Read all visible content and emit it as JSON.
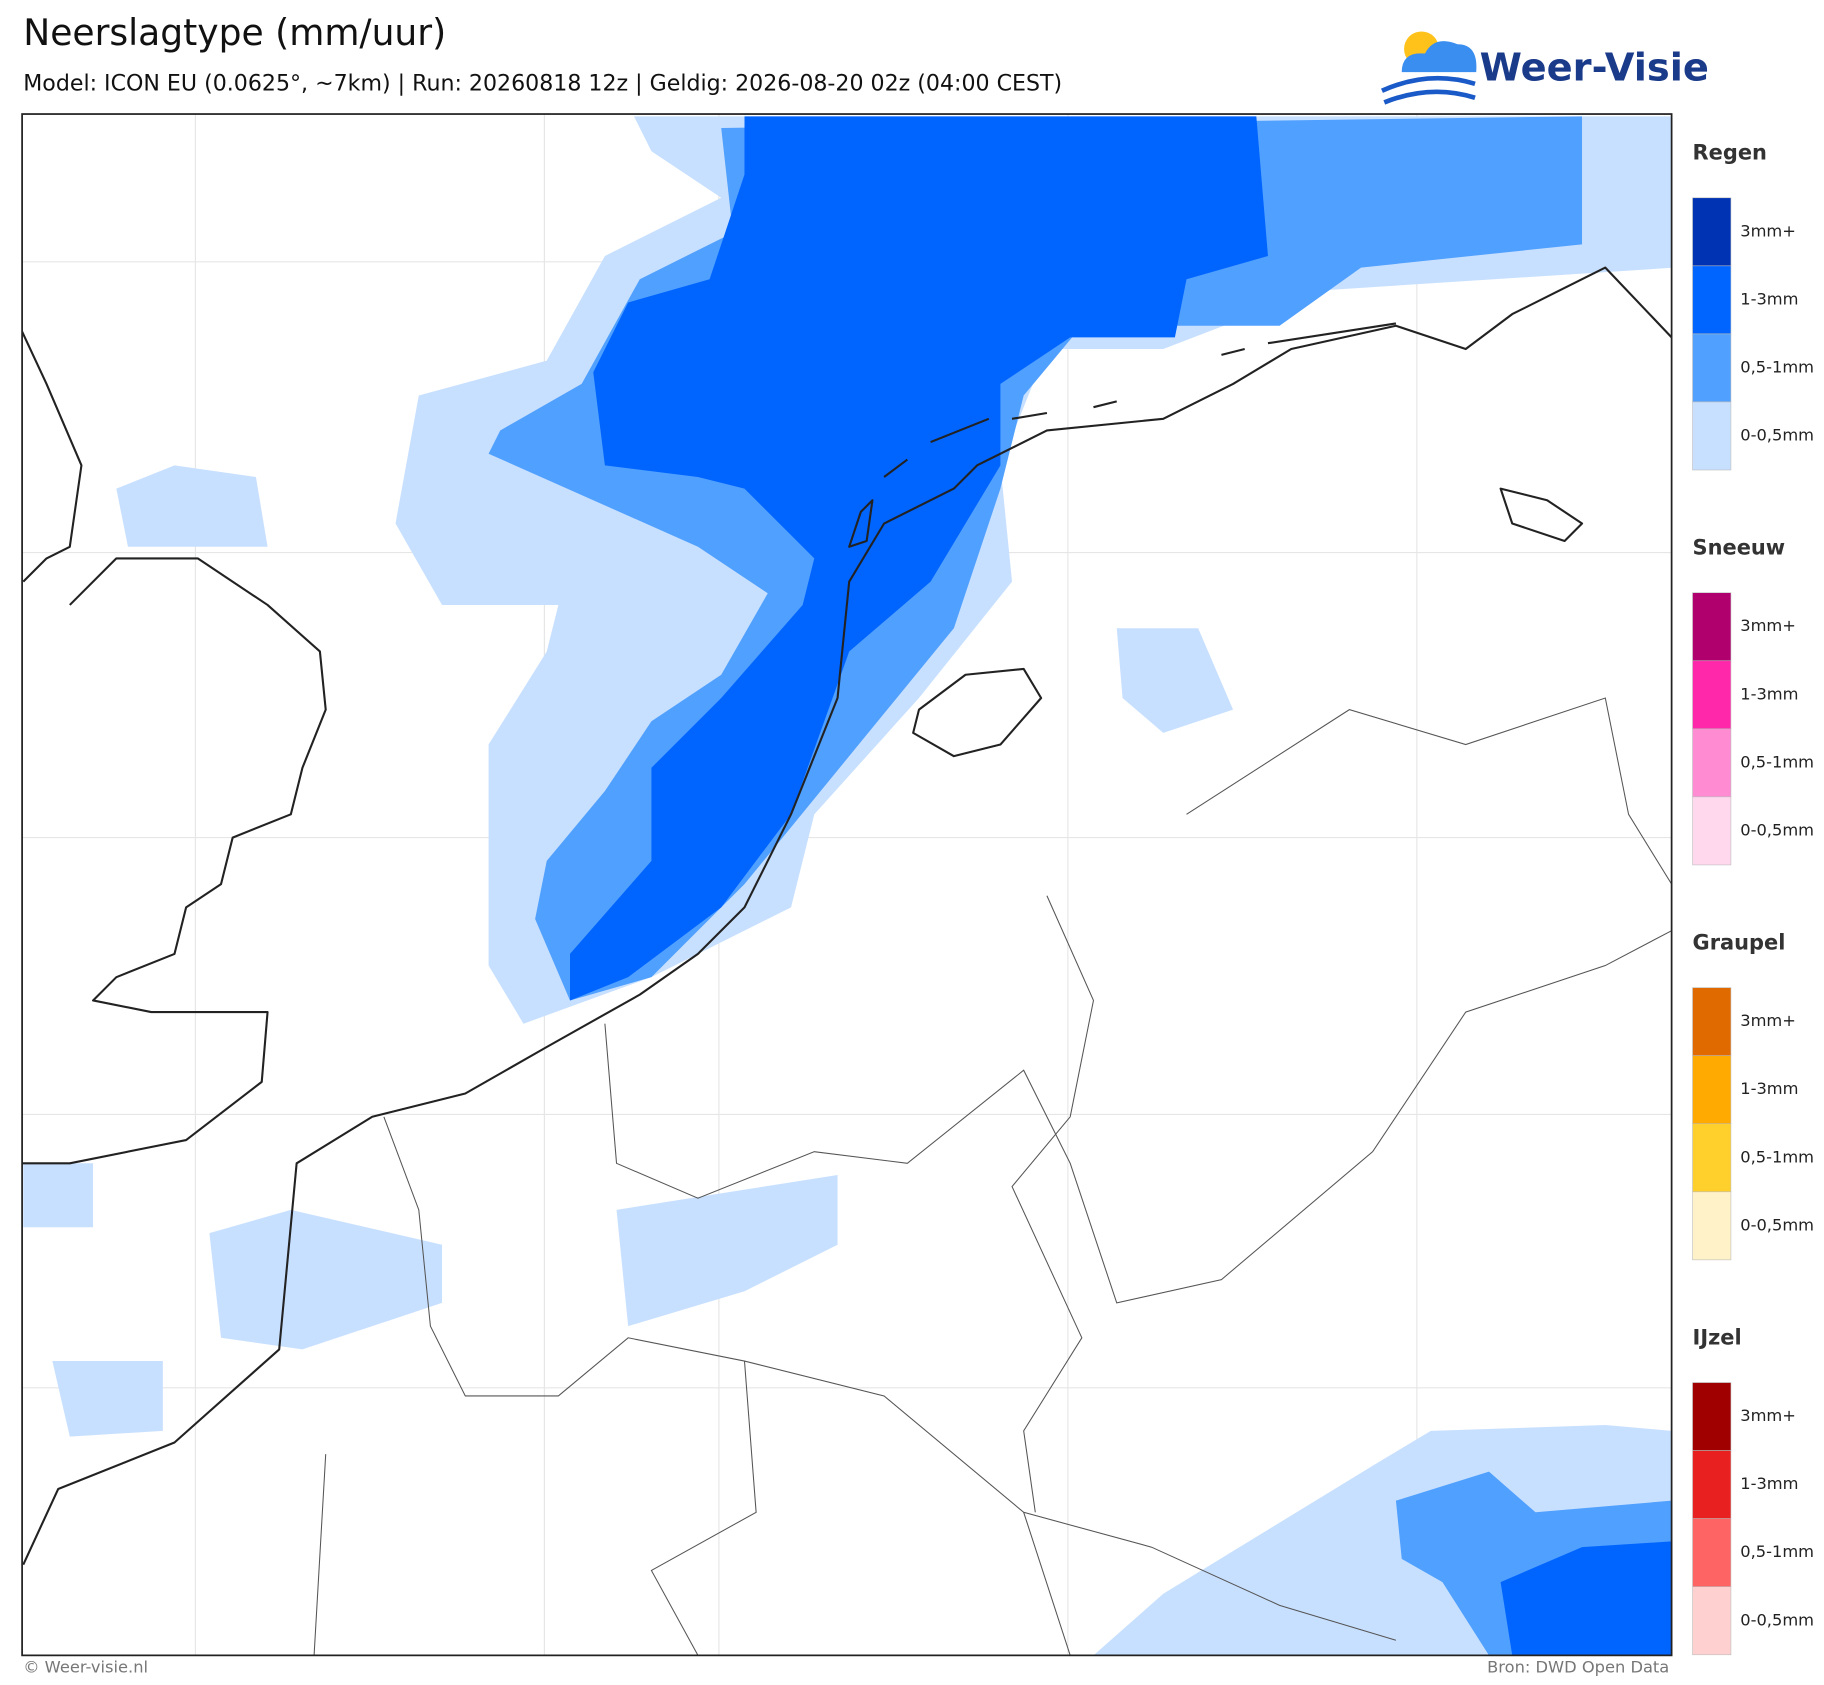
{
  "header": {
    "title": "Neerslagtype (mm/uur)",
    "subtitle": "Model: ICON EU (0.0625°, ~7km)  |  Run: 20260818 12z  |  Geldig: 2026-08-20 02z (04:00 CEST)",
    "logo": "Weer-Visie"
  },
  "legend": [
    {
      "title": "Regen",
      "items": [
        {
          "label": "3mm+",
          "color": "#0033b3"
        },
        {
          "label": "1-3mm",
          "color": "#0064ff"
        },
        {
          "label": "0,5-1mm",
          "color": "#50a0ff"
        },
        {
          "label": "0-0,5mm",
          "color": "#c8e0ff"
        }
      ]
    },
    {
      "title": "Sneeuw",
      "items": [
        {
          "label": "3mm+",
          "color": "#b0006e"
        },
        {
          "label": "1-3mm",
          "color": "#ff28aa"
        },
        {
          "label": "0,5-1mm",
          "color": "#ff8cd2"
        },
        {
          "label": "0-0,5mm",
          "color": "#ffd8ee"
        }
      ]
    },
    {
      "title": "Graupel",
      "items": [
        {
          "label": "3mm+",
          "color": "#e06a00"
        },
        {
          "label": "1-3mm",
          "color": "#ffaa00"
        },
        {
          "label": "0,5-1mm",
          "color": "#ffd02c"
        },
        {
          "label": "0-0,5mm",
          "color": "#fff2c8"
        }
      ]
    },
    {
      "title": "IJzel",
      "items": [
        {
          "label": "3mm+",
          "color": "#a00000"
        },
        {
          "label": "1-3mm",
          "color": "#e82020"
        },
        {
          "label": "0,5-1mm",
          "color": "#ff6464"
        },
        {
          "label": "0-0,5mm",
          "color": "#ffd0d0"
        }
      ]
    }
  ],
  "footer": {
    "copyright": "© Weer-visie.nl",
    "source": "Bron: DWD Open Data"
  }
}
